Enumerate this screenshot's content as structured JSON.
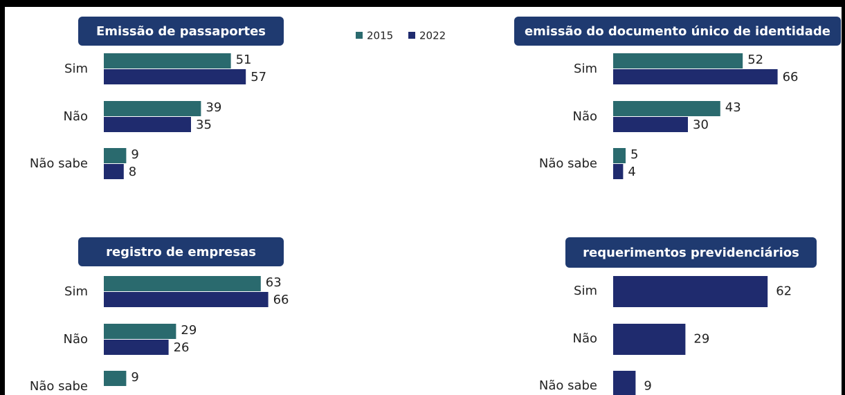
{
  "chart_data": [
    {
      "type": "bar",
      "orientation": "horizontal",
      "title": "Emissão de passaportes",
      "categories": [
        "Sim",
        "Não",
        "Não sabe"
      ],
      "series": [
        {
          "name": "2015",
          "color": "#2a6a6e",
          "values": [
            51,
            39,
            9
          ]
        },
        {
          "name": "2022",
          "color": "#1f2b6e",
          "values": [
            57,
            35,
            8
          ]
        }
      ]
    },
    {
      "type": "bar",
      "orientation": "horizontal",
      "title": "emissão do documento único de identidade",
      "categories": [
        "Sim",
        "Não",
        "Não sabe"
      ],
      "series": [
        {
          "name": "2015",
          "color": "#2a6a6e",
          "values": [
            52,
            43,
            5
          ]
        },
        {
          "name": "2022",
          "color": "#1f2b6e",
          "values": [
            66,
            30,
            4
          ]
        }
      ]
    },
    {
      "type": "bar",
      "orientation": "horizontal",
      "title": "registro de empresas",
      "categories": [
        "Sim",
        "Não",
        "Não sabe"
      ],
      "series": [
        {
          "name": "2015",
          "color": "#2a6a6e",
          "values": [
            63,
            29,
            9
          ]
        },
        {
          "name": "2022",
          "color": "#1f2b6e",
          "values": [
            66,
            26,
            null
          ]
        }
      ]
    },
    {
      "type": "bar",
      "orientation": "horizontal",
      "title": "requerimentos previdenciários",
      "categories": [
        "Sim",
        "Não",
        "Não sabe"
      ],
      "series": [
        {
          "name": "2022",
          "color": "#1f2b6e",
          "values": [
            62,
            29,
            9
          ]
        }
      ]
    }
  ]
}
